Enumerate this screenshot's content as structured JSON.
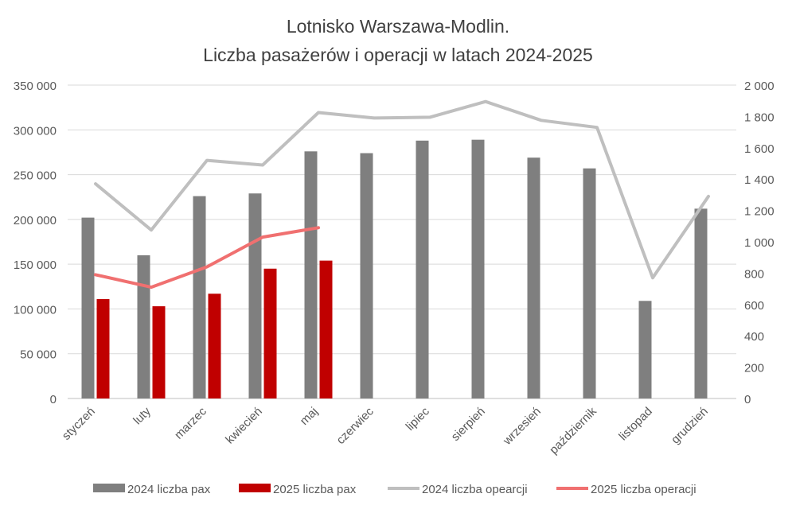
{
  "chart_data": {
    "type": "bar",
    "title_line1": "Lotnisko Warszawa-Modlin.",
    "title_line2": "Liczba pasażerów i operacji w latach 2024-2025",
    "categories": [
      "styczeń",
      "luty",
      "marzec",
      "kwiecień",
      "maj",
      "czerwiec",
      "lipiec",
      "sierpień",
      "wrzesień",
      "październik",
      "listopad",
      "grudzień"
    ],
    "y_left": {
      "min": 0,
      "max": 350000,
      "step": 50000,
      "tick_labels": [
        "0",
        "50 000",
        "100 000",
        "150 000",
        "200 000",
        "250 000",
        "300 000",
        "350 000"
      ]
    },
    "y_right": {
      "min": 0,
      "max": 2000,
      "step": 200,
      "tick_labels": [
        "0",
        "200",
        "400",
        "600",
        "800",
        "1 000",
        "1 200",
        "1 400",
        "1 600",
        "1 800",
        "2 000"
      ]
    },
    "grid": true,
    "legend_position": "bottom",
    "series": [
      {
        "name": "2024 liczba pax",
        "kind": "bar",
        "axis": "left",
        "color": "#7f7f7f",
        "values": [
          202000,
          160000,
          226000,
          229000,
          276000,
          274000,
          288000,
          289000,
          269000,
          257000,
          109000,
          212000
        ]
      },
      {
        "name": "2025 liczba pax",
        "kind": "bar",
        "axis": "left",
        "color": "#c00000",
        "values": [
          111000,
          103000,
          117000,
          145000,
          154000,
          null,
          null,
          null,
          null,
          null,
          null,
          null
        ]
      },
      {
        "name": "2024 liczba opearcji",
        "kind": "line",
        "axis": "right",
        "color": "#bfbfbf",
        "values": [
          1370,
          1075,
          1520,
          1490,
          1825,
          1790,
          1795,
          1895,
          1775,
          1730,
          770,
          1290
        ]
      },
      {
        "name": "2025 liczba operacji",
        "kind": "line",
        "axis": "right",
        "color": "#f07070",
        "values": [
          790,
          710,
          840,
          1030,
          1090,
          null,
          null,
          null,
          null,
          null,
          null,
          null
        ]
      }
    ]
  }
}
